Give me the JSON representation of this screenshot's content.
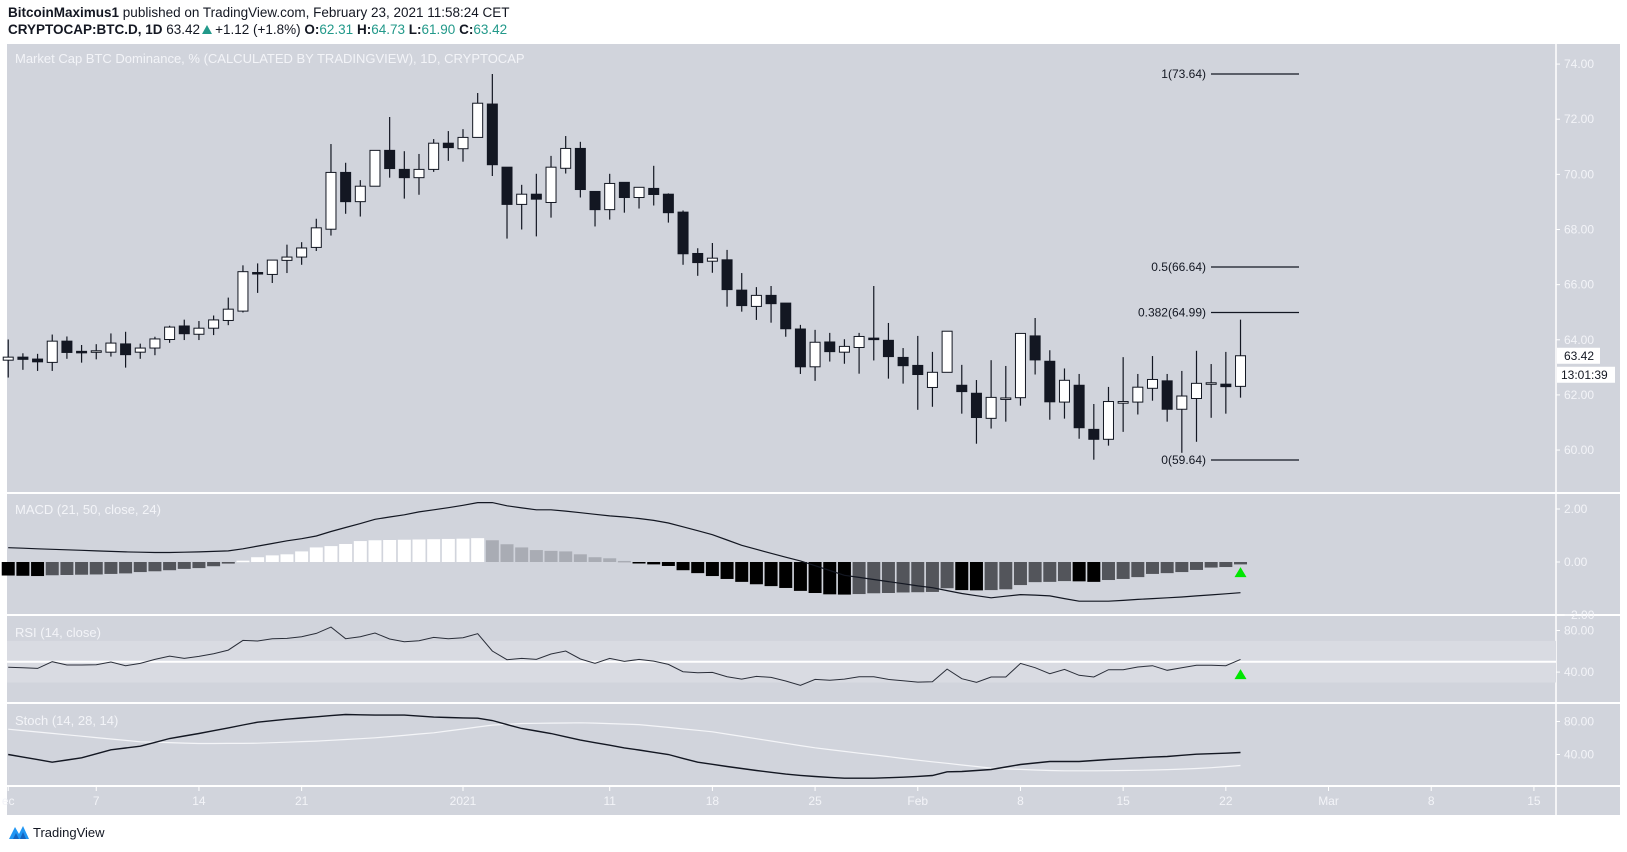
{
  "header": {
    "author": "BitcoinMaximus1",
    "published": "published on TradingView.com, February 23, 2021 11:58:24 CET",
    "symbol": "CRYPTOCAP:BTC.D, 1D",
    "last": "63.42",
    "change": "+1.12 (+1.8%)",
    "o_label": "O:",
    "o": "62.31",
    "h_label": "H:",
    "h": "64.73",
    "l_label": "L:",
    "l": "61.90",
    "c_label": "C:",
    "c": "63.42"
  },
  "colors": {
    "background": "#d1d4dc",
    "up_candle": "#ffffff",
    "down_candle": "#131722",
    "value_teal": "#22998a",
    "signal_arrow": "#00e600"
  },
  "footer": {
    "brand": "TradingView",
    "logo_icon": "tradingview-logo-icon"
  },
  "chart_data": {
    "type": "candlestick",
    "title": "Market Cap BTC Dominance, % (CALCULATED BY TRADINGVIEW), 1D, CRYPTOCAP",
    "price_axis": {
      "ticks": [
        "74.00",
        "72.00",
        "70.00",
        "68.00",
        "66.00",
        "64.00",
        "62.00",
        "60.00"
      ],
      "last_price_label": "63.42",
      "countdown_label": "13:01:39"
    },
    "time_axis": {
      "ticks": [
        {
          "date": "2020-12-01",
          "label": "ec"
        },
        {
          "date": "2020-12-07",
          "label": "7"
        },
        {
          "date": "2020-12-14",
          "label": "14"
        },
        {
          "date": "2020-12-21",
          "label": "21"
        },
        {
          "date": "2021-01-01",
          "label": "2021"
        },
        {
          "date": "2021-01-11",
          "label": "11"
        },
        {
          "date": "2021-01-18",
          "label": "18"
        },
        {
          "date": "2021-01-25",
          "label": "25"
        },
        {
          "date": "2021-02-01",
          "label": "Feb"
        },
        {
          "date": "2021-02-08",
          "label": "8"
        },
        {
          "date": "2021-02-15",
          "label": "15"
        },
        {
          "date": "2021-02-22",
          "label": "22"
        },
        {
          "date": "2021-03-01",
          "label": "Mar"
        },
        {
          "date": "2021-03-08",
          "label": "8"
        },
        {
          "date": "2021-03-15",
          "label": "15"
        }
      ]
    },
    "fib_levels": [
      {
        "label": "1(73.64)",
        "value": 73.64
      },
      {
        "label": "0.5(66.64)",
        "value": 66.64
      },
      {
        "label": "0.382(64.99)",
        "value": 64.99
      },
      {
        "label": "0(59.64)",
        "value": 59.64
      }
    ],
    "candle_fields": [
      "date",
      "open",
      "high",
      "low",
      "close"
    ],
    "candles": [
      [
        "2020-12-01",
        63.26,
        64.01,
        62.63,
        63.37
      ],
      [
        "2020-12-02",
        63.37,
        63.51,
        62.91,
        63.29
      ],
      [
        "2020-12-03",
        63.3,
        63.49,
        62.87,
        63.2
      ],
      [
        "2020-12-04",
        63.18,
        64.19,
        62.87,
        63.95
      ],
      [
        "2020-12-05",
        63.95,
        64.12,
        63.31,
        63.54
      ],
      [
        "2020-12-06",
        63.58,
        63.81,
        63.17,
        63.57
      ],
      [
        "2020-12-07",
        63.59,
        63.84,
        63.29,
        63.6
      ],
      [
        "2020-12-08",
        63.55,
        64.23,
        63.39,
        63.88
      ],
      [
        "2020-12-09",
        63.85,
        64.29,
        62.99,
        63.46
      ],
      [
        "2020-12-10",
        63.55,
        63.86,
        63.31,
        63.7
      ],
      [
        "2020-12-11",
        63.7,
        64.11,
        63.44,
        64.03
      ],
      [
        "2020-12-12",
        64.01,
        64.51,
        63.89,
        64.46
      ],
      [
        "2020-12-13",
        64.5,
        64.73,
        63.99,
        64.22
      ],
      [
        "2020-12-14",
        64.2,
        64.68,
        63.99,
        64.42
      ],
      [
        "2020-12-15",
        64.42,
        64.88,
        64.17,
        64.72
      ],
      [
        "2020-12-16",
        64.7,
        65.53,
        64.53,
        65.11
      ],
      [
        "2020-12-17",
        65.04,
        66.7,
        64.99,
        66.47
      ],
      [
        "2020-12-18",
        66.44,
        66.77,
        65.7,
        66.42
      ],
      [
        "2020-12-19",
        66.37,
        66.89,
        66.06,
        66.89
      ],
      [
        "2020-12-20",
        66.88,
        67.45,
        66.42,
        67.0
      ],
      [
        "2020-12-21",
        67.0,
        67.54,
        66.72,
        67.33
      ],
      [
        "2020-12-22",
        67.35,
        68.39,
        67.22,
        68.06
      ],
      [
        "2020-12-23",
        68.01,
        71.1,
        67.78,
        70.07
      ],
      [
        "2020-12-24",
        70.07,
        70.42,
        68.57,
        69.01
      ],
      [
        "2020-12-25",
        69.01,
        69.79,
        68.47,
        69.57
      ],
      [
        "2020-12-26",
        69.57,
        70.87,
        69.57,
        70.87
      ],
      [
        "2020-12-27",
        70.87,
        72.08,
        69.88,
        70.21
      ],
      [
        "2020-12-28",
        70.18,
        70.84,
        69.12,
        69.88
      ],
      [
        "2020-12-29",
        69.88,
        70.74,
        69.26,
        70.18
      ],
      [
        "2020-12-30",
        70.18,
        71.28,
        70.09,
        71.13
      ],
      [
        "2020-12-31",
        71.13,
        71.57,
        70.49,
        70.97
      ],
      [
        "2021-01-01",
        70.93,
        71.64,
        70.46,
        71.34
      ],
      [
        "2021-01-02",
        71.34,
        72.95,
        71.34,
        72.58
      ],
      [
        "2021-01-03",
        72.55,
        73.64,
        69.94,
        70.35
      ],
      [
        "2021-01-04",
        70.26,
        70.26,
        67.67,
        68.91
      ],
      [
        "2021-01-05",
        68.91,
        69.62,
        68.0,
        69.28
      ],
      [
        "2021-01-06",
        69.28,
        70.02,
        67.75,
        69.1
      ],
      [
        "2021-01-07",
        68.98,
        70.67,
        68.43,
        70.26
      ],
      [
        "2021-01-08",
        70.22,
        71.39,
        70.03,
        70.94
      ],
      [
        "2021-01-09",
        70.94,
        71.18,
        69.16,
        69.45
      ],
      [
        "2021-01-10",
        69.38,
        69.38,
        68.11,
        68.72
      ],
      [
        "2021-01-11",
        68.72,
        70.02,
        68.36,
        69.67
      ],
      [
        "2021-01-12",
        69.71,
        69.71,
        68.61,
        69.16
      ],
      [
        "2021-01-13",
        69.16,
        69.53,
        68.76,
        69.53
      ],
      [
        "2021-01-14",
        69.49,
        70.31,
        68.87,
        69.27
      ],
      [
        "2021-01-15",
        69.28,
        69.31,
        68.25,
        68.61
      ],
      [
        "2021-01-16",
        68.63,
        68.69,
        66.72,
        67.12
      ],
      [
        "2021-01-17",
        67.13,
        67.32,
        66.32,
        66.8
      ],
      [
        "2021-01-18",
        66.85,
        67.51,
        66.43,
        66.96
      ],
      [
        "2021-01-19",
        66.9,
        67.26,
        65.2,
        65.82
      ],
      [
        "2021-01-20",
        65.8,
        66.42,
        65.02,
        65.24
      ],
      [
        "2021-01-21",
        65.21,
        65.91,
        64.72,
        65.61
      ],
      [
        "2021-01-22",
        65.61,
        65.95,
        64.62,
        65.31
      ],
      [
        "2021-01-23",
        65.33,
        65.33,
        64.11,
        64.4
      ],
      [
        "2021-01-24",
        64.39,
        64.54,
        62.76,
        63.02
      ],
      [
        "2021-01-25",
        63.02,
        64.36,
        62.51,
        63.91
      ],
      [
        "2021-01-26",
        63.92,
        64.25,
        63.21,
        63.57
      ],
      [
        "2021-01-27",
        63.55,
        64.02,
        63.13,
        63.76
      ],
      [
        "2021-01-28",
        63.72,
        64.25,
        62.77,
        64.12
      ],
      [
        "2021-01-29",
        64.06,
        65.95,
        63.25,
        64.04
      ],
      [
        "2021-01-30",
        63.98,
        64.61,
        62.59,
        63.39
      ],
      [
        "2021-01-31",
        63.36,
        63.7,
        62.41,
        63.06
      ],
      [
        "2021-02-01",
        63.07,
        64.14,
        61.46,
        62.74
      ],
      [
        "2021-02-02",
        62.27,
        63.56,
        61.57,
        62.82
      ],
      [
        "2021-02-03",
        62.82,
        64.31,
        62.82,
        64.31
      ],
      [
        "2021-02-04",
        62.35,
        63.09,
        61.32,
        62.12
      ],
      [
        "2021-02-05",
        62.06,
        62.54,
        60.23,
        61.18
      ],
      [
        "2021-02-06",
        61.15,
        63.26,
        60.78,
        61.91
      ],
      [
        "2021-02-07",
        61.89,
        63.05,
        61.03,
        61.89
      ],
      [
        "2021-02-08",
        61.9,
        64.23,
        61.61,
        64.23
      ],
      [
        "2021-02-09",
        64.14,
        64.79,
        62.74,
        63.27
      ],
      [
        "2021-02-10",
        63.22,
        63.62,
        61.1,
        61.75
      ],
      [
        "2021-02-11",
        61.74,
        62.96,
        61.14,
        62.53
      ],
      [
        "2021-02-12",
        62.35,
        62.76,
        60.41,
        60.81
      ],
      [
        "2021-02-13",
        60.75,
        61.67,
        59.65,
        60.39
      ],
      [
        "2021-02-14",
        60.39,
        62.29,
        60.16,
        61.76
      ],
      [
        "2021-02-15",
        61.7,
        63.37,
        60.66,
        61.76
      ],
      [
        "2021-02-16",
        61.74,
        62.76,
        61.29,
        62.28
      ],
      [
        "2021-02-17",
        62.24,
        63.41,
        61.79,
        62.56
      ],
      [
        "2021-02-18",
        62.51,
        62.76,
        61.03,
        61.48
      ],
      [
        "2021-02-19",
        61.48,
        62.87,
        59.9,
        61.96
      ],
      [
        "2021-02-20",
        61.87,
        63.6,
        60.3,
        62.42
      ],
      [
        "2021-02-21",
        62.43,
        63.12,
        61.17,
        62.44
      ],
      [
        "2021-02-22",
        62.39,
        63.56,
        61.32,
        62.3
      ],
      [
        "2021-02-23",
        62.31,
        64.73,
        61.9,
        63.42
      ]
    ],
    "indicators": {
      "macd": {
        "title": "MACD (21, 50, close, 24)",
        "ticks": [
          "2.00",
          "0.00",
          "−2.00"
        ],
        "ylim": [
          -2,
          2.2
        ],
        "macd": [
          0.54,
          0.52,
          0.5,
          0.48,
          0.46,
          0.44,
          0.42,
          0.4,
          0.38,
          0.37,
          0.36,
          0.36,
          0.37,
          0.38,
          0.4,
          0.42,
          0.5,
          0.6,
          0.7,
          0.8,
          0.88,
          0.98,
          1.15,
          1.3,
          1.45,
          1.61,
          1.7,
          1.78,
          1.89,
          1.97,
          2.05,
          2.14,
          2.24,
          2.24,
          2.12,
          2.04,
          1.97,
          1.97,
          1.92,
          1.86,
          1.8,
          1.74,
          1.7,
          1.64,
          1.57,
          1.47,
          1.33,
          1.18,
          1.03,
          0.83,
          0.63,
          0.48,
          0.33,
          0.18,
          0.04,
          -0.14,
          -0.32,
          -0.5,
          -0.58,
          -0.66,
          -0.74,
          -0.82,
          -0.9,
          -0.97,
          -1.08,
          -1.19,
          -1.27,
          -1.35,
          -1.29,
          -1.23,
          -1.25,
          -1.28,
          -1.38,
          -1.48,
          -1.48,
          -1.48,
          -1.45,
          -1.41,
          -1.38,
          -1.35,
          -1.32,
          -1.28,
          -1.24,
          -1.2,
          -1.16
        ],
        "histogram": [
          -0.51,
          -0.52,
          -0.53,
          -0.5,
          -0.49,
          -0.48,
          -0.47,
          -0.45,
          -0.43,
          -0.38,
          -0.35,
          -0.31,
          -0.26,
          -0.23,
          -0.16,
          -0.06,
          0.05,
          0.18,
          0.25,
          0.29,
          0.4,
          0.55,
          0.6,
          0.68,
          0.79,
          0.82,
          0.83,
          0.84,
          0.85,
          0.86,
          0.87,
          0.88,
          0.9,
          0.82,
          0.67,
          0.55,
          0.45,
          0.42,
          0.4,
          0.29,
          0.18,
          0.14,
          0.04,
          -0.04,
          -0.09,
          -0.15,
          -0.31,
          -0.42,
          -0.53,
          -0.64,
          -0.75,
          -0.84,
          -0.91,
          -0.98,
          -1.09,
          -1.17,
          -1.22,
          -1.23,
          -1.21,
          -1.18,
          -1.17,
          -1.15,
          -1.14,
          -1.13,
          -0.99,
          -1.06,
          -1.07,
          -1.06,
          -1.03,
          -0.87,
          -0.76,
          -0.75,
          -0.72,
          -0.73,
          -0.75,
          -0.68,
          -0.64,
          -0.57,
          -0.45,
          -0.42,
          -0.38,
          -0.3,
          -0.21,
          -0.19,
          -0.09
        ],
        "histogram_colors": {
          "rising_positive": "#ffffff",
          "falling_positive": "#a9acb4",
          "falling_negative": "#000000",
          "rising_negative": "#53555b"
        },
        "signal_marker": {
          "date": "2021-02-23",
          "direction": "up",
          "value": -0.38
        }
      },
      "rsi": {
        "title": "RSI (14, close)",
        "ticks": [
          "80.00",
          "40.00"
        ],
        "band": [
          30,
          70
        ],
        "midline": 50,
        "values": [
          44.6,
          44.2,
          43.6,
          50.0,
          46.8,
          46.8,
          47.1,
          49.7,
          46.2,
          48.4,
          52.2,
          55.4,
          53.2,
          55.1,
          57.7,
          61.2,
          70.5,
          69.9,
          72.1,
          72.4,
          74.0,
          77.2,
          83.3,
          72.1,
          74.0,
          77.6,
          71.8,
          69.2,
          70.2,
          73.4,
          72.1,
          73.1,
          76.9,
          60.3,
          51.9,
          53.2,
          52.2,
          57.4,
          60.3,
          52.6,
          48.4,
          53.2,
          50.3,
          52.2,
          50.6,
          47.4,
          40.4,
          39.4,
          39.7,
          35.6,
          33.3,
          35.9,
          34.9,
          31.4,
          27.2,
          33.0,
          32.1,
          33.3,
          35.6,
          35.6,
          33.0,
          31.7,
          30.4,
          30.8,
          42.9,
          33.7,
          30.1,
          35.3,
          35.3,
          48.4,
          44.2,
          38.5,
          42.6,
          36.9,
          35.3,
          42.3,
          42.3,
          44.9,
          46.2,
          41.7,
          44.2,
          46.5,
          46.5,
          46.2,
          52.2
        ],
        "signal_marker": {
          "date": "2021-02-23",
          "direction": "up",
          "value": 38
        }
      },
      "stoch": {
        "title": "Stoch (14, 28, 14)",
        "ticks": [
          "80.00",
          "40.00"
        ],
        "k": [
          40.0,
          36.9,
          33.8,
          30.7,
          33.3,
          36.0,
          40.8,
          45.7,
          47.9,
          50.1,
          54.7,
          59.4,
          62.4,
          65.5,
          68.9,
          72.3,
          75.7,
          79.2,
          81.0,
          82.8,
          84.2,
          85.7,
          87.1,
          88.5,
          88.1,
          87.7,
          87.7,
          87.7,
          86.5,
          85.3,
          84.8,
          84.4,
          84.0,
          81.2,
          76.3,
          71.5,
          68.5,
          65.5,
          61.4,
          57.4,
          54.3,
          51.3,
          48.0,
          45.5,
          42.7,
          40.0,
          35.3,
          30.7,
          28.1,
          25.5,
          23.0,
          20.6,
          18.4,
          16.2,
          14.7,
          13.3,
          12.3,
          11.3,
          11.3,
          11.3,
          11.9,
          12.5,
          13.5,
          14.5,
          19.0,
          19.4,
          20.6,
          21.8,
          24.8,
          27.9,
          29.7,
          31.5,
          31.5,
          31.5,
          32.7,
          33.9,
          34.9,
          36.0,
          36.8,
          37.6,
          39.0,
          40.4,
          41.0,
          41.6,
          42.4
        ],
        "d": [
          70.7,
          69.0,
          67.3,
          65.6,
          63.9,
          62.2,
          60.5,
          58.8,
          57.1,
          55.4,
          54.9,
          54.4,
          53.8,
          53.3,
          53.3,
          53.4,
          53.5,
          53.7,
          54.3,
          54.9,
          55.6,
          56.2,
          57.2,
          58.2,
          59.2,
          60.2,
          61.7,
          63.2,
          64.8,
          66.3,
          68.6,
          70.9,
          73.3,
          75.6,
          76.6,
          77.6,
          77.8,
          78.0,
          78.2,
          78.4,
          78.0,
          77.5,
          76.9,
          76.3,
          74.5,
          72.8,
          71.0,
          69.3,
          67.5,
          64.7,
          61.9,
          59.1,
          56.4,
          53.6,
          50.8,
          48.1,
          45.9,
          43.8,
          41.6,
          39.5,
          37.4,
          35.2,
          33.1,
          31.2,
          29.3,
          27.3,
          25.4,
          23.5,
          22.5,
          21.9,
          21.2,
          20.6,
          20.2,
          20.2,
          20.3,
          20.4,
          20.6,
          20.8,
          21.2,
          21.7,
          22.3,
          23.0,
          24.0,
          25.3,
          26.7
        ]
      }
    }
  }
}
